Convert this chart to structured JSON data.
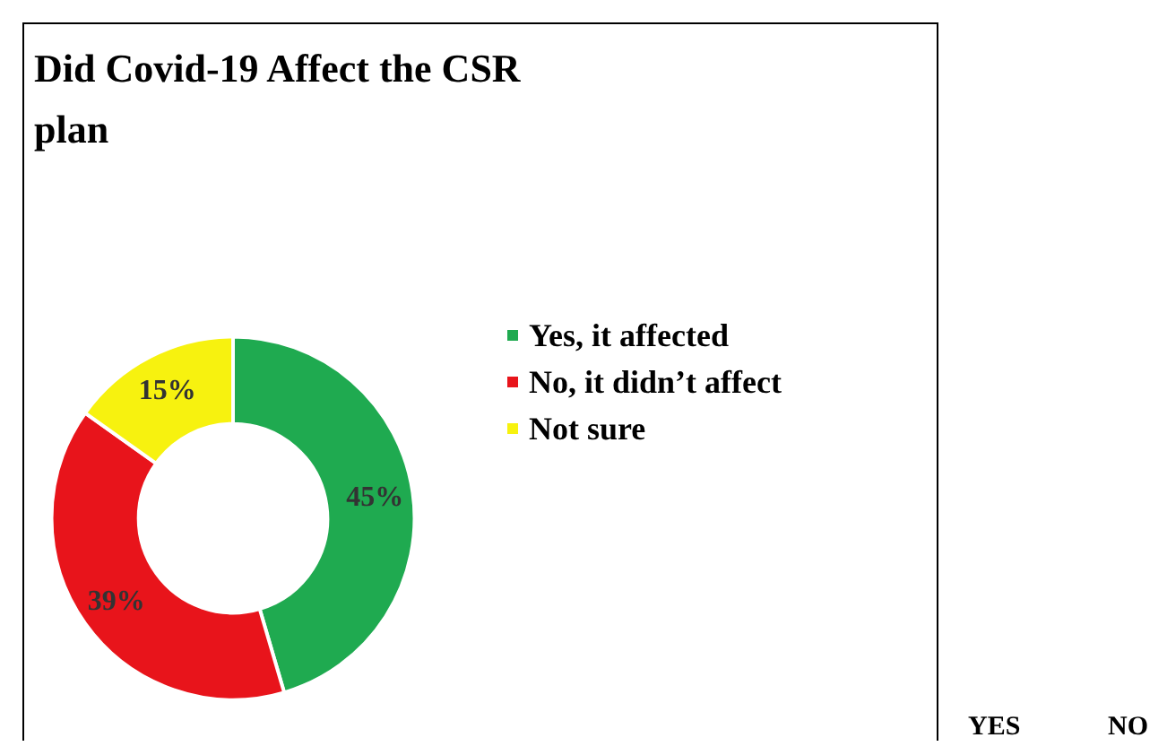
{
  "chart_data": {
    "type": "donut",
    "title": "Did Covid-19 Affect the CSR\nplan",
    "categories": [
      "Yes, it affected",
      "No, it didn’t affect",
      "Not sure"
    ],
    "values": [
      45,
      39,
      15
    ],
    "colors": [
      "#1faa50",
      "#e8141b",
      "#f7f20f"
    ],
    "value_labels": [
      "45%",
      "39%",
      "15%"
    ],
    "legend": "right",
    "annotations": [
      "YES",
      "NO"
    ]
  }
}
